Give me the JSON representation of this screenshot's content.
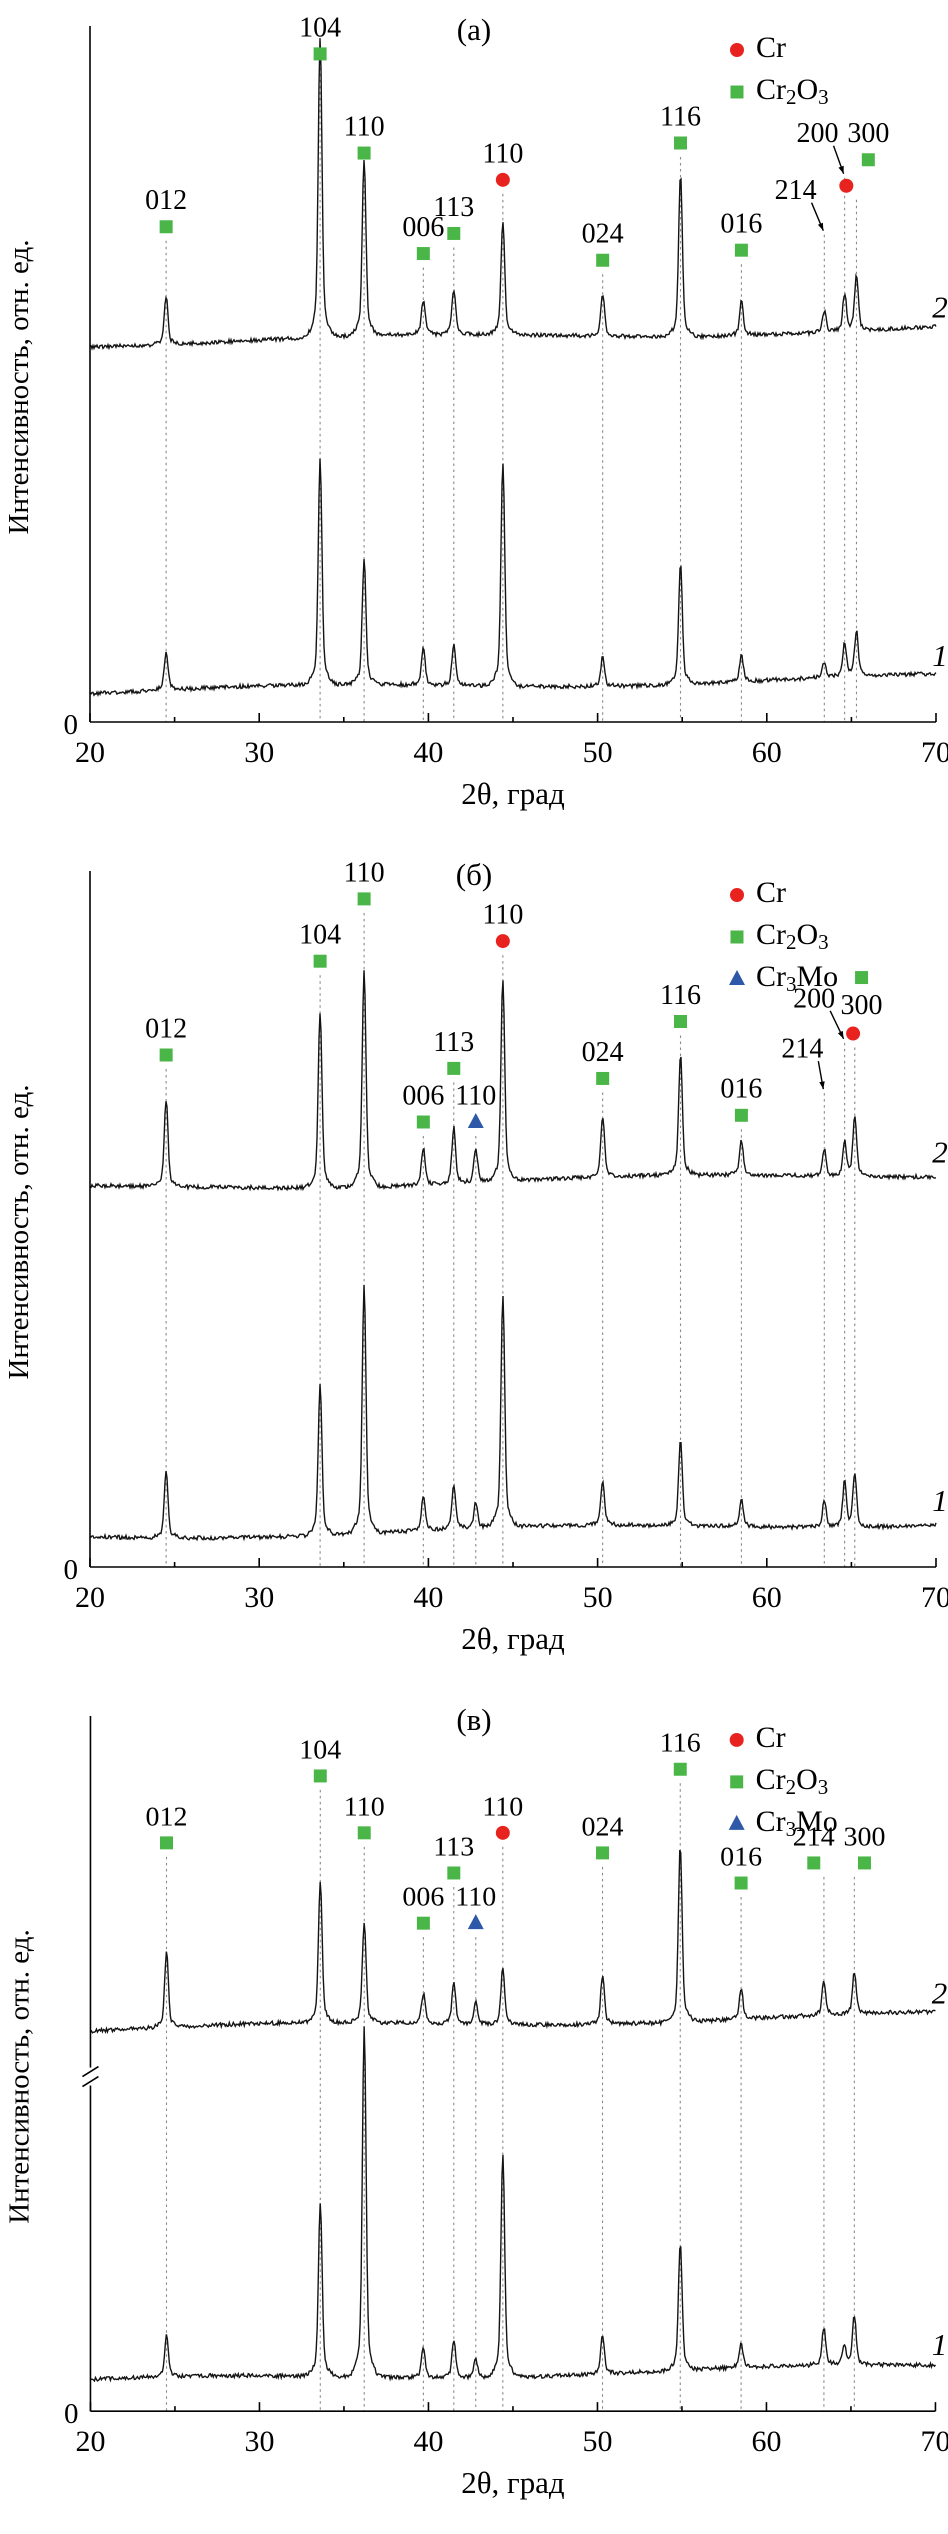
{
  "chart_data": {
    "type": "line",
    "figure_kind": "xrd-diffraction-patterns",
    "colors": {
      "cr": "#e8231f",
      "cr2o3": "#4bb648",
      "cr3mo": "#2e58a8",
      "curve": "#141414",
      "guide": "#8a8a8a",
      "axis": "#000000"
    },
    "panels": [
      {
        "title": "(а)",
        "xlabel": "2θ, град",
        "ylabel": "Интенсивность, отн. ед.",
        "origin_label": "0",
        "xlim": [
          20,
          70
        ],
        "xticks": [
          20,
          30,
          40,
          50,
          60,
          70
        ],
        "minor_tick_step": 5,
        "legend": [
          {
            "key": "cr",
            "marker": "circle",
            "label": "Cr",
            "parts": [
              {
                "t": "Cr"
              }
            ]
          },
          {
            "key": "cr2o3",
            "marker": "square",
            "label": "Cr2O3",
            "parts": [
              {
                "t": "Cr"
              },
              {
                "s": "2"
              },
              {
                "t": "O"
              },
              {
                "s": "3"
              }
            ]
          }
        ],
        "curves": [
          {
            "label": "2",
            "base": 0.565,
            "seed": 11,
            "peaks": [
              [
                24.5,
                0.065
              ],
              [
                33.6,
                0.4
              ],
              [
                36.2,
                0.235
              ],
              [
                39.7,
                0.045
              ],
              [
                41.5,
                0.06
              ],
              [
                44.4,
                0.15
              ],
              [
                50.3,
                0.055
              ],
              [
                54.9,
                0.215
              ],
              [
                58.5,
                0.045
              ],
              [
                63.4,
                0.028
              ],
              [
                64.6,
                0.05
              ],
              [
                65.3,
                0.075
              ]
            ]
          },
          {
            "label": "1",
            "base": 0.045,
            "seed": 12,
            "peaks": [
              [
                24.5,
                0.05
              ],
              [
                33.6,
                0.3
              ],
              [
                36.2,
                0.165
              ],
              [
                39.7,
                0.05
              ],
              [
                41.5,
                0.055
              ],
              [
                44.4,
                0.3
              ],
              [
                50.3,
                0.04
              ],
              [
                54.9,
                0.16
              ],
              [
                58.5,
                0.035
              ],
              [
                63.4,
                0.02
              ],
              [
                64.6,
                0.045
              ],
              [
                65.3,
                0.06
              ]
            ]
          }
        ],
        "annotations": [
          {
            "t": "012",
            "x": 24.5,
            "mk": "sq",
            "ly": 0.225
          },
          {
            "t": "104",
            "x": 33.6,
            "mk": "sq",
            "ly": -0.033
          },
          {
            "t": "110",
            "x": 36.2,
            "mk": "sq",
            "ly": 0.115
          },
          {
            "t": "006",
            "x": 39.7,
            "mk": "sq",
            "ly": 0.265
          },
          {
            "t": "113",
            "x": 41.5,
            "mk": "sq",
            "ly": 0.235
          },
          {
            "t": "110",
            "x": 44.4,
            "mk": "ci",
            "ly": 0.155
          },
          {
            "t": "024",
            "x": 50.3,
            "mk": "sq",
            "ly": 0.275
          },
          {
            "t": "116",
            "x": 54.9,
            "mk": "sq",
            "ly": 0.1
          },
          {
            "t": "016",
            "x": 58.5,
            "mk": "sq",
            "ly": 0.26
          },
          {
            "t": "214",
            "x": 63.4,
            "lx": 61.7,
            "mk": "none",
            "ly": 0.21,
            "arrow": true
          },
          {
            "t": "200",
            "x": 64.6,
            "lx": 63.0,
            "mk": "none",
            "ly": 0.125,
            "arrow": true
          },
          {
            "t": "300",
            "x": 65.3,
            "lx": 66.0,
            "mk": "sq",
            "ly": 0.125,
            "m2": {
              "mk": "ci",
              "dx": -1.3,
              "dy": 50
            }
          }
        ]
      },
      {
        "title": "(б)",
        "xlabel": "2θ, град",
        "ylabel": "Интенсивность, отн. ед.",
        "origin_label": "0",
        "xlim": [
          20,
          70
        ],
        "xticks": [
          20,
          30,
          40,
          50,
          60,
          70
        ],
        "minor_tick_step": 5,
        "legend": [
          {
            "key": "cr",
            "marker": "circle",
            "label": "Cr",
            "parts": [
              {
                "t": "Cr"
              }
            ]
          },
          {
            "key": "cr2o3",
            "marker": "square",
            "label": "Cr2O3",
            "parts": [
              {
                "t": "Cr"
              },
              {
                "s": "2"
              },
              {
                "t": "O"
              },
              {
                "s": "3"
              }
            ]
          },
          {
            "key": "cr3mo",
            "marker": "triangle",
            "label": "Cr3Mo",
            "parts": [
              {
                "t": "Cr"
              },
              {
                "s": "3"
              },
              {
                "t": "Mo"
              }
            ]
          }
        ],
        "curves": [
          {
            "label": "2",
            "base": 0.565,
            "seed": 21,
            "peaks": [
              [
                24.5,
                0.115
              ],
              [
                33.6,
                0.235
              ],
              [
                36.2,
                0.29
              ],
              [
                39.7,
                0.05
              ],
              [
                41.5,
                0.075
              ],
              [
                42.8,
                0.045
              ],
              [
                44.4,
                0.27
              ],
              [
                50.3,
                0.08
              ],
              [
                54.9,
                0.16
              ],
              [
                58.5,
                0.045
              ],
              [
                63.4,
                0.035
              ],
              [
                64.6,
                0.045
              ],
              [
                65.2,
                0.08
              ]
            ]
          },
          {
            "label": "1",
            "base": 0.045,
            "seed": 22,
            "peaks": [
              [
                24.5,
                0.09
              ],
              [
                33.6,
                0.2
              ],
              [
                36.2,
                0.33
              ],
              [
                39.7,
                0.045
              ],
              [
                41.5,
                0.06
              ],
              [
                42.8,
                0.035
              ],
              [
                44.4,
                0.31
              ],
              [
                50.3,
                0.06
              ],
              [
                54.9,
                0.115
              ],
              [
                58.5,
                0.035
              ],
              [
                63.4,
                0.035
              ],
              [
                64.6,
                0.06
              ],
              [
                65.2,
                0.07
              ]
            ]
          }
        ],
        "annotations": [
          {
            "t": "012",
            "x": 24.5,
            "mk": "sq",
            "ly": 0.2
          },
          {
            "t": "104",
            "x": 33.6,
            "mk": "sq",
            "ly": 0.06
          },
          {
            "t": "110",
            "x": 36.2,
            "mk": "sq",
            "ly": -0.033
          },
          {
            "t": "006",
            "x": 39.7,
            "mk": "sq",
            "ly": 0.3
          },
          {
            "t": "113",
            "x": 41.5,
            "mk": "sq",
            "ly": 0.22
          },
          {
            "t": "110",
            "x": 42.8,
            "mk": "tri",
            "ly": 0.3
          },
          {
            "t": "110",
            "x": 44.4,
            "mk": "ci",
            "ly": 0.03
          },
          {
            "t": "024",
            "x": 50.3,
            "mk": "sq",
            "ly": 0.235
          },
          {
            "t": "116",
            "x": 54.9,
            "mk": "sq",
            "ly": 0.15
          },
          {
            "t": "016",
            "x": 58.5,
            "mk": "sq",
            "ly": 0.29
          },
          {
            "t": "200",
            "x": 64.6,
            "lx": 62.8,
            "mk": "none",
            "ly": 0.155,
            "arrow": true
          },
          {
            "t": "214",
            "x": 63.4,
            "lx": 62.1,
            "mk": "none",
            "ly": 0.23,
            "arrow": true
          },
          {
            "t": "300",
            "x": 65.2,
            "lx": 65.6,
            "mk": "sq",
            "ly": 0.165,
            "mpos": "above",
            "m2": {
              "mk": "ci",
              "dx": -0.5,
              "dy": 26
            }
          }
        ]
      },
      {
        "title": "(в)",
        "xlabel": "2θ, град",
        "ylabel": "Интенсивность, отн. ед.",
        "origin_label": "0",
        "xlim": [
          20,
          70
        ],
        "xticks": [
          20,
          30,
          40,
          50,
          60,
          70
        ],
        "minor_tick_step": 5,
        "ybreak_ly": 0.5,
        "legend": [
          {
            "key": "cr",
            "marker": "circle",
            "label": "Cr",
            "parts": [
              {
                "t": "Cr"
              }
            ]
          },
          {
            "key": "cr2o3",
            "marker": "square",
            "label": "Cr2O3",
            "parts": [
              {
                "t": "Cr"
              },
              {
                "s": "2"
              },
              {
                "t": "O"
              },
              {
                "s": "3"
              }
            ]
          },
          {
            "key": "cr3mo",
            "marker": "triangle",
            "label": "Cr3Mo",
            "parts": [
              {
                "t": "Cr"
              },
              {
                "s": "3"
              },
              {
                "t": "Mo"
              }
            ]
          }
        ],
        "curves": [
          {
            "label": "2",
            "base": 0.57,
            "seed": 31,
            "peaks": [
              [
                24.5,
                0.1
              ],
              [
                33.6,
                0.19
              ],
              [
                36.2,
                0.135
              ],
              [
                39.7,
                0.04
              ],
              [
                41.5,
                0.055
              ],
              [
                42.8,
                0.03
              ],
              [
                44.4,
                0.075
              ],
              [
                50.3,
                0.065
              ],
              [
                54.9,
                0.235
              ],
              [
                58.5,
                0.04
              ],
              [
                63.4,
                0.045
              ],
              [
                65.2,
                0.055
              ]
            ]
          },
          {
            "label": "1",
            "base": 0.045,
            "seed": 32,
            "peaks": [
              [
                24.5,
                0.055
              ],
              [
                33.6,
                0.23
              ],
              [
                36.2,
                0.47
              ],
              [
                39.7,
                0.04
              ],
              [
                41.5,
                0.05
              ],
              [
                42.8,
                0.025
              ],
              [
                44.4,
                0.3
              ],
              [
                50.3,
                0.05
              ],
              [
                54.9,
                0.17
              ],
              [
                58.5,
                0.03
              ],
              [
                63.4,
                0.05
              ],
              [
                64.6,
                0.025
              ],
              [
                65.2,
                0.065
              ]
            ]
          }
        ],
        "annotations": [
          {
            "t": "012",
            "x": 24.5,
            "mk": "sq",
            "ly": 0.115
          },
          {
            "t": "104",
            "x": 33.6,
            "mk": "sq",
            "ly": 0.015
          },
          {
            "t": "110",
            "x": 36.2,
            "mk": "sq",
            "ly": 0.1
          },
          {
            "t": "006",
            "x": 39.7,
            "mk": "sq",
            "ly": 0.235
          },
          {
            "t": "113",
            "x": 41.5,
            "mk": "sq",
            "ly": 0.16
          },
          {
            "t": "110",
            "x": 42.8,
            "mk": "tri",
            "ly": 0.235
          },
          {
            "t": "110",
            "x": 44.4,
            "mk": "ci",
            "ly": 0.1
          },
          {
            "t": "024",
            "x": 50.3,
            "mk": "sq",
            "ly": 0.13
          },
          {
            "t": "116",
            "x": 54.9,
            "mk": "sq",
            "ly": 0.005
          },
          {
            "t": "016",
            "x": 58.5,
            "mk": "sq",
            "ly": 0.175
          },
          {
            "t": "214",
            "x": 63.4,
            "lx": 62.8,
            "mk": "sq",
            "ly": 0.145
          },
          {
            "t": "300",
            "x": 65.2,
            "lx": 65.8,
            "mk": "sq",
            "ly": 0.145
          }
        ]
      }
    ]
  }
}
